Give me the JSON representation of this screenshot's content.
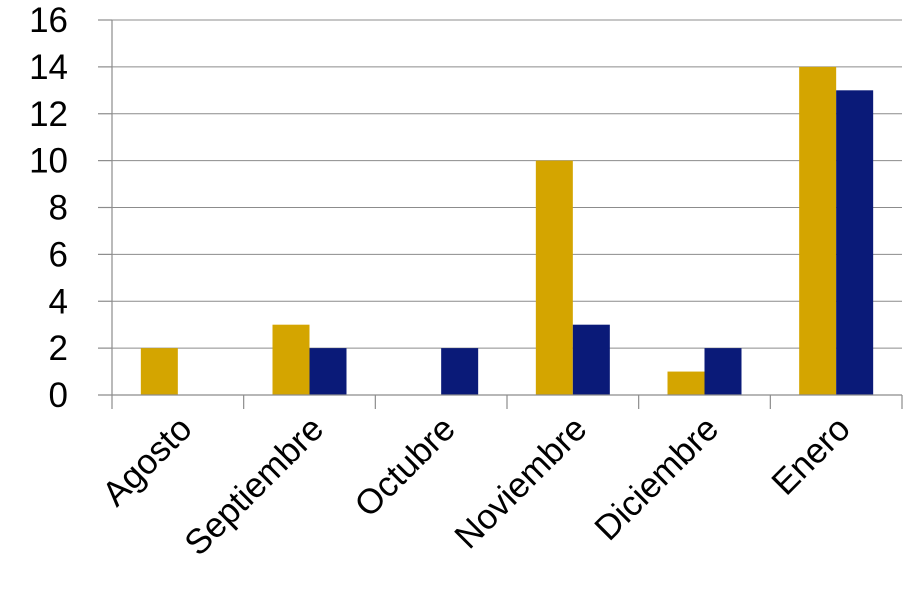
{
  "chart_data": {
    "type": "bar",
    "title": "",
    "xlabel": "",
    "ylabel": "",
    "categories": [
      "Agosto",
      "Septiembre",
      "Octubre",
      "Noviembre",
      "Diciembre",
      "Enero"
    ],
    "series": [
      {
        "color": "#D4A500",
        "values": [
          2,
          3,
          0,
          10,
          1,
          14
        ]
      },
      {
        "color": "#0A1A78",
        "values": [
          0,
          2,
          2,
          3,
          2,
          13
        ]
      }
    ],
    "ylim": [
      0,
      16
    ],
    "yticks": [
      0,
      2,
      4,
      6,
      8,
      10,
      12,
      14,
      16
    ],
    "grid": true,
    "legend": "none"
  }
}
